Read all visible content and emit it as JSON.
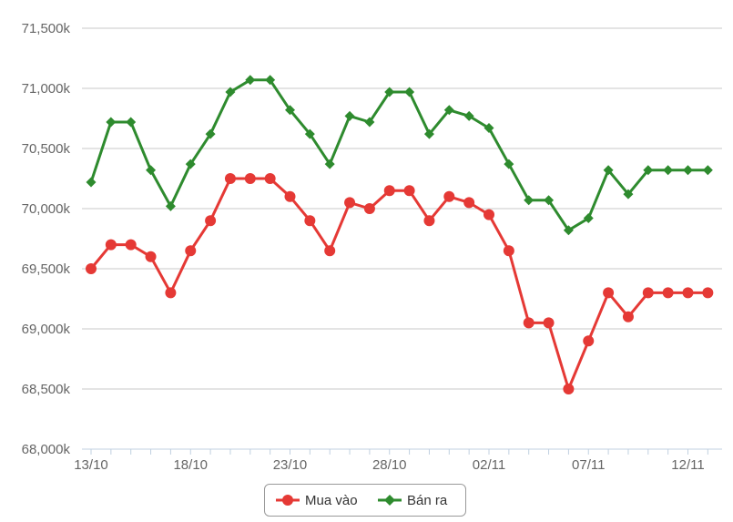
{
  "chart_data": {
    "type": "line",
    "x": [
      "13/10",
      "14/10",
      "15/10",
      "16/10",
      "17/10",
      "18/10",
      "19/10",
      "20/10",
      "21/10",
      "22/10",
      "23/10",
      "24/10",
      "25/10",
      "26/10",
      "27/10",
      "28/10",
      "29/10",
      "30/10",
      "31/10",
      "01/11",
      "02/11",
      "03/11",
      "04/11",
      "05/11",
      "06/11",
      "07/11",
      "08/11",
      "09/11",
      "10/11",
      "11/11",
      "12/11",
      "13/11"
    ],
    "x_tick_labels": [
      "13/10",
      "18/10",
      "23/10",
      "28/10",
      "02/11",
      "07/11",
      "12/11"
    ],
    "series": [
      {
        "name": "Mua vào",
        "color": "#e53935",
        "marker": "circle",
        "values": [
          69500,
          69700,
          69700,
          69600,
          69300,
          69650,
          69900,
          70250,
          70250,
          70250,
          70100,
          69900,
          69650,
          70050,
          70000,
          70150,
          70150,
          69900,
          70100,
          70050,
          69950,
          69650,
          69050,
          69050,
          68500,
          68900,
          69300,
          69100,
          69300,
          69300,
          69300,
          69300
        ]
      },
      {
        "name": "Bán ra",
        "color": "#2e8b2e",
        "marker": "diamond",
        "values": [
          70220,
          70720,
          70720,
          70320,
          70020,
          70370,
          70620,
          70970,
          71070,
          71070,
          70820,
          70620,
          70370,
          70770,
          70720,
          70970,
          70970,
          70620,
          70820,
          70770,
          70670,
          70370,
          70070,
          70070,
          69820,
          69920,
          70320,
          70120,
          70320,
          70320,
          70320,
          70320
        ]
      }
    ],
    "y_tick_labels": [
      "68,000k",
      "68,500k",
      "69,000k",
      "69,500k",
      "70,000k",
      "70,500k",
      "71,000k",
      "71,500k"
    ],
    "ylim": [
      68000,
      71500
    ],
    "grid": true,
    "legend_position": "bottom-center",
    "title": "",
    "xlabel": "",
    "ylabel": ""
  }
}
